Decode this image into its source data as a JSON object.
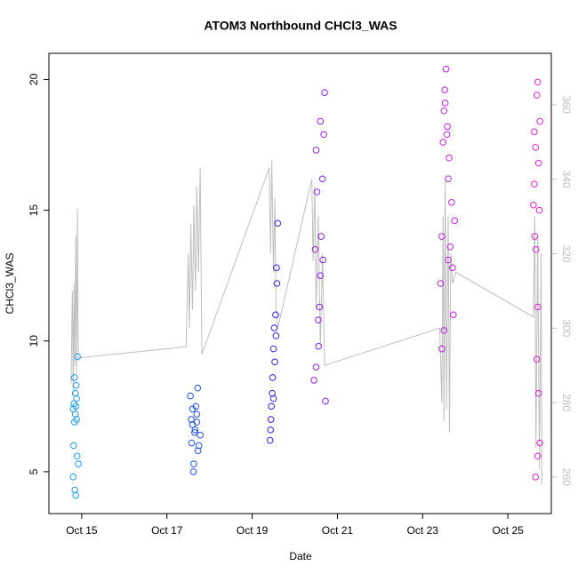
{
  "chart_data": {
    "type": "scatter",
    "title": "ATOM3 Northbound CHCl3_WAS",
    "x_label": "Date",
    "y_label": "CHCl3_WAS",
    "xlim": [
      14.23,
      26.02
    ],
    "xticks": [
      {
        "value": 15,
        "label": "Oct 15"
      },
      {
        "value": 17,
        "label": "Oct 17"
      },
      {
        "value": 19,
        "label": "Oct 19"
      },
      {
        "value": 21,
        "label": "Oct 21"
      },
      {
        "value": 23,
        "label": "Oct 23"
      },
      {
        "value": 25,
        "label": "Oct 25"
      }
    ],
    "ylim": [
      3.4,
      21.0
    ],
    "yticks": [
      5,
      10,
      15,
      20
    ],
    "y2lim": [
      250.2,
      373.8
    ],
    "y2ticks": [
      260,
      280,
      300,
      320,
      340,
      360
    ],
    "series": [
      {
        "color": "#bebebe",
        "axis": "y2",
        "line": true,
        "x": [
          14.75,
          14.78,
          14.8,
          14.82,
          14.84,
          14.86,
          14.88,
          14.9,
          14.92,
          17.45,
          17.5,
          17.53,
          17.56,
          17.6,
          17.63,
          17.67,
          17.7,
          17.74,
          17.78,
          17.82,
          19.4,
          19.43,
          19.46,
          19.5,
          19.53,
          19.56,
          19.6,
          20.4,
          20.43,
          20.47,
          20.5,
          20.55,
          20.6,
          20.65,
          20.7,
          23.4,
          23.45,
          23.48,
          23.5,
          23.53,
          23.56,
          23.6,
          23.63,
          23.66,
          23.7,
          23.78,
          25.6,
          25.63,
          25.66,
          25.7,
          25.74,
          25.78,
          25.8
        ],
        "values": [
          285,
          310,
          282,
          312,
          290,
          325,
          288,
          332,
          292,
          295,
          320,
          300,
          328,
          305,
          333,
          310,
          338,
          315,
          343,
          293,
          343,
          320,
          345,
          315,
          335,
          305,
          300,
          340,
          318,
          338,
          305,
          330,
          295,
          320,
          290,
          300,
          280,
          330,
          275,
          340,
          278,
          330,
          272,
          320,
          312,
          315,
          303,
          330,
          268,
          325,
          262,
          320,
          258
        ]
      },
      {
        "color": "#1e9bf0",
        "x": [
          14.82,
          14.85,
          14.8,
          14.88,
          14.83,
          14.9,
          14.87,
          14.84,
          14.86,
          14.81,
          14.89,
          14.92,
          14.85,
          14.8,
          14.88,
          14.83,
          14.86
        ],
        "values": [
          7.6,
          8.0,
          7.4,
          7.8,
          6.9,
          9.4,
          8.3,
          4.3,
          4.1,
          6.0,
          5.6,
          5.3,
          7.2,
          4.8,
          7.0,
          8.6,
          7.5
        ]
      },
      {
        "color": "#2050e8",
        "x": [
          17.55,
          17.6,
          17.65,
          17.7,
          17.58,
          17.62,
          17.68,
          17.72,
          17.75,
          17.57,
          17.66,
          17.73,
          17.63,
          17.7,
          17.6,
          17.78
        ],
        "values": [
          7.9,
          6.8,
          6.5,
          7.2,
          6.1,
          5.0,
          7.5,
          8.2,
          6.0,
          7.0,
          6.6,
          5.8,
          5.3,
          6.9,
          7.4,
          6.4
        ]
      },
      {
        "color": "#3a20e0",
        "x": [
          19.42,
          19.45,
          19.48,
          19.5,
          19.52,
          19.55,
          19.57,
          19.6,
          19.44,
          19.47,
          19.53,
          19.58,
          19.43,
          19.5,
          19.56
        ],
        "values": [
          6.2,
          7.5,
          8.6,
          9.7,
          10.5,
          11.0,
          12.8,
          14.5,
          7.0,
          8.0,
          9.2,
          12.2,
          6.6,
          7.8,
          10.2
        ]
      },
      {
        "color": "#8a20e8",
        "x": [
          20.45,
          20.5,
          20.55,
          20.6,
          20.62,
          20.65,
          20.68,
          20.7,
          20.48,
          20.52,
          20.58,
          20.6,
          20.72,
          20.5,
          20.56,
          20.66
        ],
        "values": [
          8.5,
          9.0,
          10.8,
          12.5,
          14.0,
          16.2,
          17.9,
          19.5,
          13.5,
          15.7,
          11.3,
          18.4,
          7.7,
          17.3,
          9.8,
          13.1
        ]
      },
      {
        "color": "#c020e0",
        "x": [
          23.42,
          23.45,
          23.48,
          23.5,
          23.52,
          23.55,
          23.58,
          23.6,
          23.62,
          23.65,
          23.68,
          23.7,
          23.72,
          23.75,
          23.5,
          23.45,
          23.53,
          23.57,
          23.6
        ],
        "values": [
          12.2,
          14.0,
          17.6,
          18.8,
          19.6,
          20.4,
          18.2,
          16.2,
          17.0,
          13.6,
          15.3,
          12.8,
          11.0,
          14.6,
          10.4,
          9.7,
          19.1,
          17.9,
          13.1
        ]
      },
      {
        "color": "#e020d0",
        "x": [
          25.62,
          25.65,
          25.68,
          25.7,
          25.72,
          25.6,
          25.63,
          25.66,
          25.7,
          25.68,
          25.72,
          25.75,
          25.65,
          25.7,
          25.75,
          25.62,
          25.74
        ],
        "values": [
          18.0,
          17.4,
          19.4,
          19.9,
          16.8,
          15.2,
          14.0,
          13.5,
          11.3,
          9.3,
          8.0,
          6.1,
          4.8,
          5.6,
          18.4,
          16.0,
          15.0
        ]
      }
    ]
  }
}
